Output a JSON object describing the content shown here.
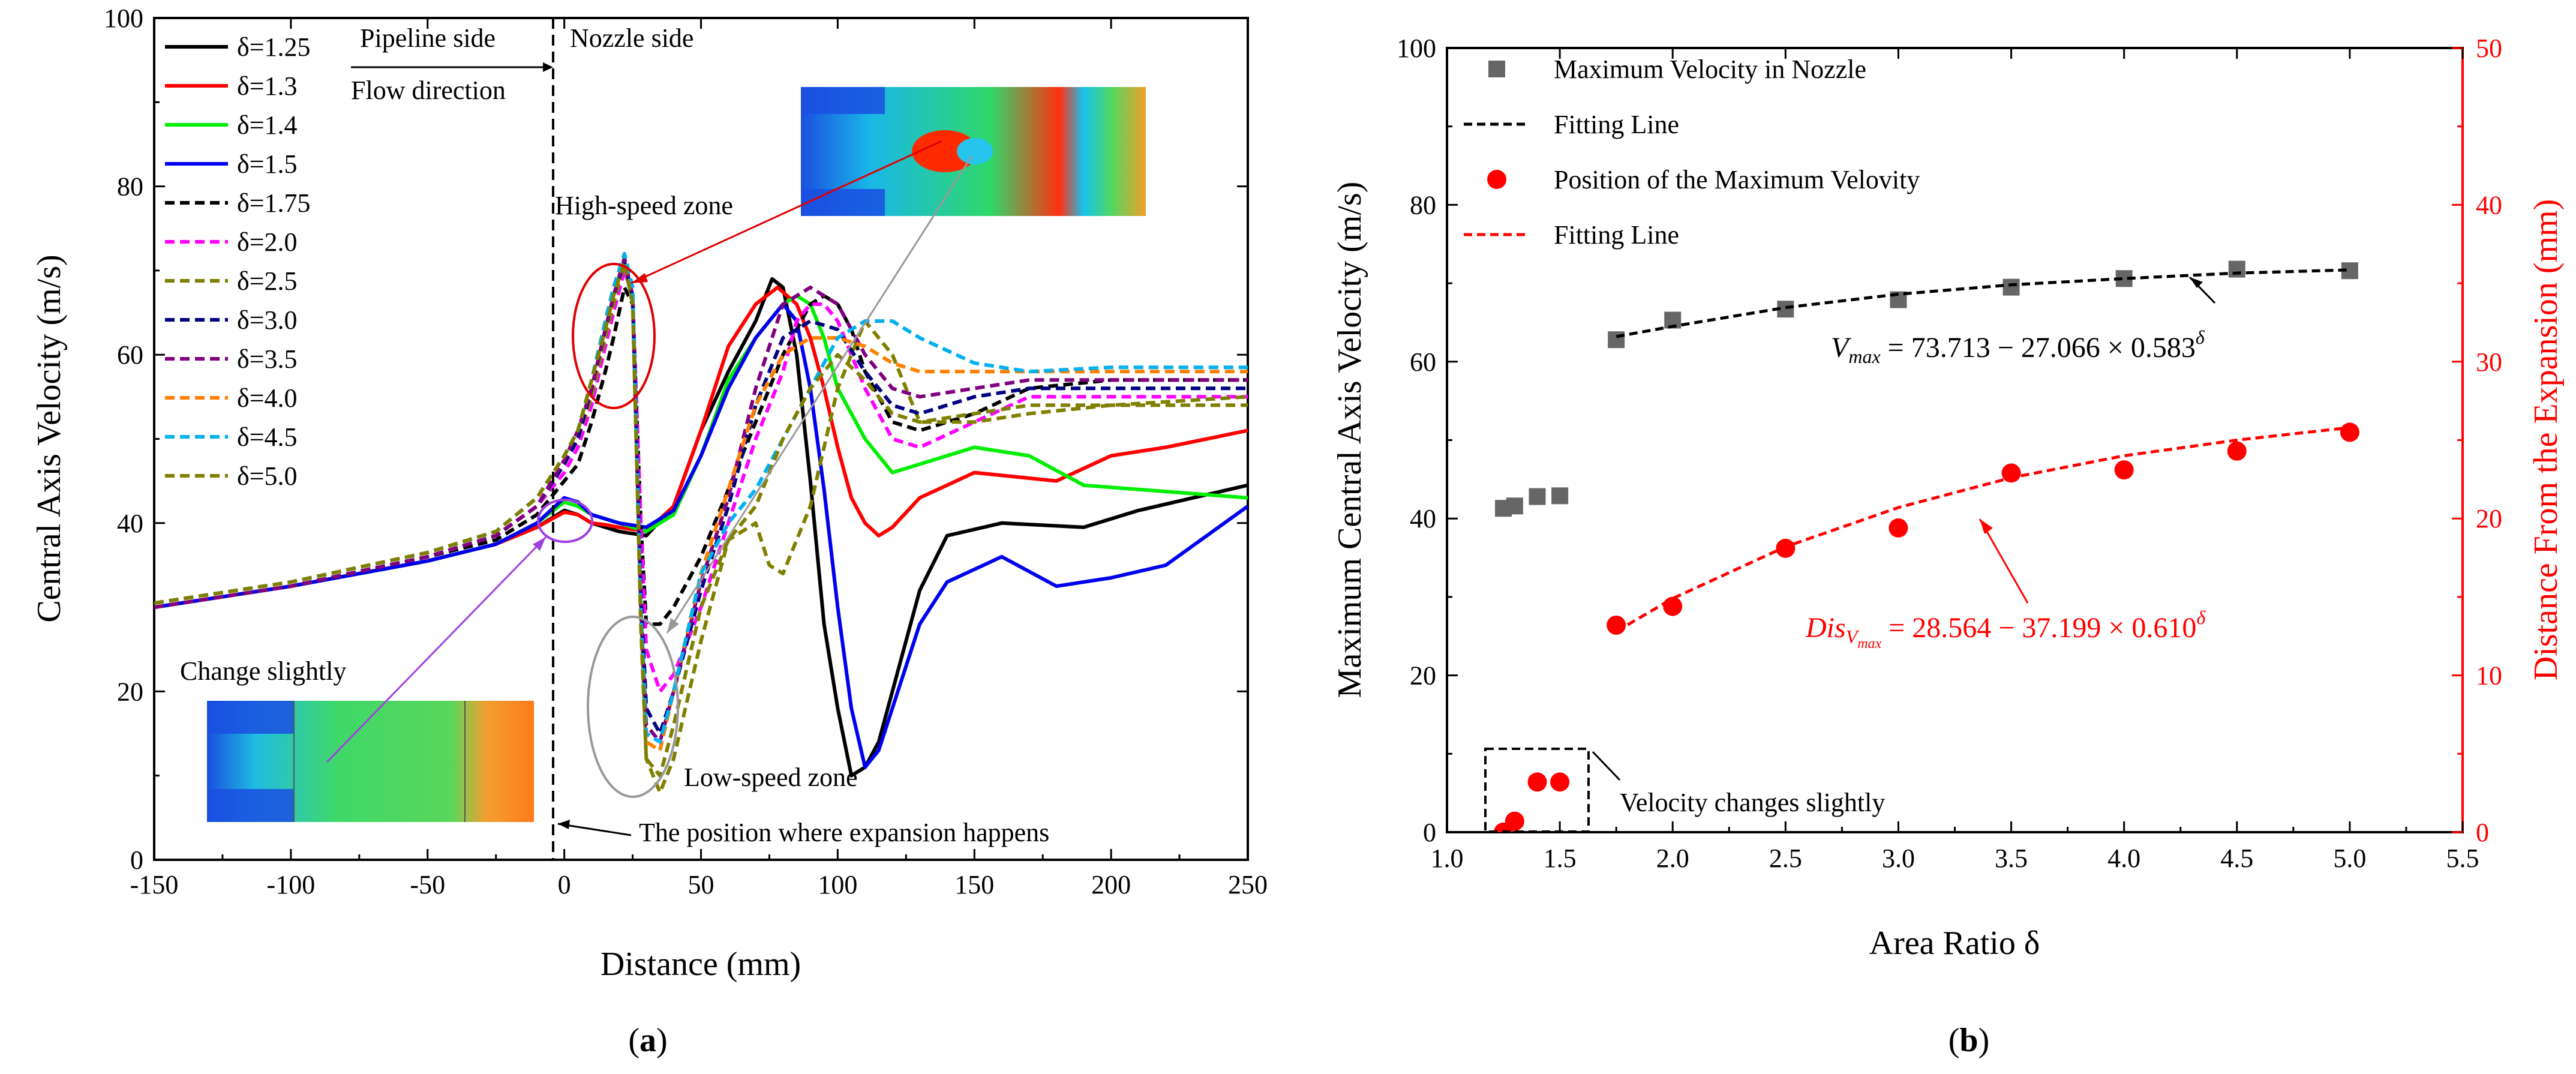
{
  "chart_data": [
    {
      "panel": "(a)",
      "type": "line",
      "xlabel": "Distance (mm)",
      "ylabel": "Central Axis Velocity (m/s)",
      "xlim": [
        -150,
        250
      ],
      "ylim": [
        0,
        100
      ],
      "xticks": [
        -150,
        -100,
        -50,
        0,
        50,
        100,
        150,
        200,
        250
      ],
      "yticks": [
        0,
        20,
        40,
        60,
        80,
        100
      ],
      "series": [
        {
          "name": "δ=1.25",
          "color": "#000000",
          "dash": "solid",
          "x": [
            -150,
            -100,
            -50,
            -25,
            -10,
            0,
            5,
            10,
            15,
            20,
            30,
            40,
            50,
            60,
            70,
            76,
            80,
            85,
            90,
            95,
            100,
            105,
            110,
            115,
            120,
            130,
            140,
            160,
            190,
            210,
            230,
            250
          ],
          "y": [
            30,
            32.5,
            35.5,
            37.5,
            39.5,
            41.5,
            41,
            40,
            39.5,
            39,
            38.5,
            42,
            51,
            58,
            64,
            69,
            68,
            60,
            45,
            28,
            18,
            10,
            11,
            14,
            20,
            32,
            38.5,
            40,
            39.5,
            41.5,
            43,
            44.5
          ]
        },
        {
          "name": "δ=1.3",
          "color": "#ff0000",
          "dash": "solid",
          "x": [
            -150,
            -100,
            -50,
            -25,
            -10,
            0,
            5,
            10,
            15,
            20,
            30,
            40,
            50,
            60,
            70,
            78,
            85,
            90,
            95,
            100,
            105,
            110,
            115,
            120,
            130,
            150,
            180,
            200,
            220,
            250
          ],
          "y": [
            30,
            32.5,
            35.5,
            37.5,
            39.5,
            41.3,
            41,
            40,
            39.8,
            39.5,
            39,
            42,
            51,
            61,
            66,
            68,
            66,
            62,
            56,
            49,
            43,
            40,
            38.5,
            39.5,
            43,
            46,
            45,
            48,
            49,
            51
          ]
        },
        {
          "name": "δ=1.4",
          "color": "#00ee00",
          "dash": "solid",
          "x": [
            -150,
            -100,
            -50,
            -25,
            -10,
            0,
            5,
            10,
            15,
            20,
            30,
            40,
            50,
            60,
            70,
            80,
            85,
            90,
            95,
            100,
            110,
            120,
            130,
            150,
            170,
            190,
            210,
            250
          ],
          "y": [
            30,
            32.5,
            35.5,
            37.5,
            40,
            42.5,
            42,
            41,
            40.5,
            40,
            39,
            41,
            48,
            57,
            62,
            66,
            67,
            66,
            62,
            56,
            50,
            46,
            47,
            49,
            48,
            44.5,
            44,
            43
          ]
        },
        {
          "name": "δ=1.5",
          "color": "#0000ee",
          "dash": "solid",
          "x": [
            -150,
            -100,
            -50,
            -25,
            -10,
            0,
            5,
            10,
            15,
            20,
            30,
            40,
            50,
            60,
            70,
            80,
            85,
            90,
            95,
            100,
            105,
            110,
            115,
            120,
            130,
            140,
            160,
            180,
            200,
            220,
            250
          ],
          "y": [
            30,
            32.5,
            35.5,
            37.5,
            40,
            43,
            42.5,
            41,
            40.5,
            40,
            39.5,
            41.5,
            48,
            56,
            62,
            66,
            64,
            56,
            44,
            30,
            18,
            11,
            13,
            18,
            28,
            33,
            36,
            32.5,
            33.5,
            35,
            42
          ]
        },
        {
          "name": "δ=1.75",
          "color": "#000000",
          "dash": "dash",
          "x": [
            -150,
            -100,
            -50,
            -25,
            -10,
            0,
            5,
            10,
            15,
            18,
            22,
            25,
            28,
            30,
            35,
            40,
            50,
            60,
            70,
            80,
            90,
            95,
            100,
            105,
            110,
            120,
            130,
            150,
            170,
            200,
            250
          ],
          "y": [
            30,
            32.5,
            36,
            38,
            41,
            45,
            47,
            52,
            58,
            62,
            68,
            66,
            40,
            28,
            28,
            30,
            36,
            44,
            52,
            60,
            66,
            67,
            66,
            63,
            58,
            52,
            51,
            53,
            56,
            57,
            57
          ]
        },
        {
          "name": "δ=2.0",
          "color": "#ff00ff",
          "dash": "dash",
          "x": [
            -150,
            -100,
            -50,
            -25,
            -10,
            0,
            5,
            10,
            15,
            18,
            22,
            25,
            28,
            30,
            35,
            40,
            50,
            60,
            70,
            80,
            85,
            90,
            95,
            100,
            110,
            120,
            130,
            150,
            170,
            200,
            250
          ],
          "y": [
            30,
            32.5,
            36,
            38.5,
            42,
            46,
            49,
            54,
            61,
            65,
            70,
            67,
            40,
            25,
            20,
            22,
            30,
            40,
            50,
            58,
            64,
            66,
            66,
            64,
            56,
            50,
            49,
            52,
            55,
            55,
            55
          ]
        },
        {
          "name": "δ=2.5",
          "color": "#808000",
          "dash": "dash",
          "x": [
            -150,
            -100,
            -50,
            -25,
            -10,
            0,
            5,
            10,
            15,
            18,
            22,
            25,
            28,
            30,
            35,
            40,
            50,
            60,
            70,
            75,
            80,
            90,
            100,
            110,
            120,
            130,
            150,
            170,
            200,
            250
          ],
          "y": [
            30,
            32.5,
            36,
            38.5,
            42,
            47,
            50,
            55,
            62,
            66,
            71,
            66,
            30,
            12,
            8,
            12,
            26,
            38,
            40,
            35,
            34,
            42,
            56,
            64,
            60,
            52,
            52,
            53,
            54,
            55
          ]
        },
        {
          "name": "δ=3.0",
          "color": "#000080",
          "dash": "dash",
          "x": [
            -150,
            -100,
            -50,
            -25,
            -10,
            0,
            5,
            10,
            15,
            18,
            22,
            25,
            28,
            30,
            35,
            40,
            50,
            60,
            70,
            80,
            90,
            100,
            110,
            120,
            130,
            150,
            170,
            200,
            250
          ],
          "y": [
            30,
            32.5,
            36,
            38.5,
            42,
            47,
            50,
            56,
            63,
            67,
            71,
            67,
            32,
            18,
            15,
            20,
            32,
            42,
            54,
            62,
            64,
            63,
            58,
            54,
            53,
            55,
            56,
            56,
            56
          ]
        },
        {
          "name": "δ=3.5",
          "color": "#800080",
          "dash": "dash",
          "x": [
            -150,
            -100,
            -50,
            -25,
            -10,
            0,
            5,
            10,
            15,
            18,
            22,
            25,
            28,
            30,
            35,
            40,
            50,
            60,
            70,
            80,
            90,
            100,
            110,
            120,
            130,
            150,
            170,
            200,
            250
          ],
          "y": [
            30,
            32.5,
            36,
            38.5,
            42,
            47.5,
            51,
            56,
            63,
            67,
            71.5,
            67,
            30,
            16,
            14,
            20,
            33,
            43,
            56,
            66,
            68,
            66,
            60,
            56,
            55,
            56,
            57,
            57,
            57
          ]
        },
        {
          "name": "δ=4.0",
          "color": "#ff8000",
          "dash": "dash",
          "x": [
            -150,
            -100,
            -50,
            -25,
            -10,
            0,
            5,
            10,
            15,
            18,
            22,
            25,
            28,
            30,
            35,
            40,
            50,
            60,
            70,
            80,
            90,
            100,
            110,
            120,
            130,
            150,
            170,
            200,
            250
          ],
          "y": [
            30.5,
            33,
            36.5,
            39,
            43,
            48,
            51,
            57,
            64,
            68,
            72,
            67,
            28,
            14,
            13,
            20,
            34,
            44,
            54,
            60,
            62,
            62,
            61,
            59,
            58,
            58,
            58,
            58,
            58
          ]
        },
        {
          "name": "δ=4.5",
          "color": "#00b0f0",
          "dash": "dash",
          "x": [
            -150,
            -100,
            -50,
            -25,
            -10,
            0,
            5,
            10,
            15,
            18,
            22,
            25,
            28,
            30,
            35,
            40,
            50,
            60,
            70,
            80,
            90,
            100,
            110,
            120,
            130,
            150,
            170,
            200,
            250
          ],
          "y": [
            30.5,
            33,
            36.5,
            39,
            43,
            48,
            51,
            57,
            64,
            68,
            72,
            68,
            30,
            15,
            14,
            20,
            34,
            40,
            44,
            50,
            56,
            62,
            64,
            64,
            62,
            59,
            58,
            58.5,
            58.5
          ]
        },
        {
          "name": "δ=5.0",
          "color": "#808000",
          "dash": "dash",
          "x": [
            -150,
            -100,
            -50,
            -25,
            -10,
            0,
            5,
            10,
            15,
            18,
            22,
            25,
            28,
            30,
            35,
            40,
            50,
            60,
            70,
            80,
            90,
            100,
            110,
            120,
            130,
            150,
            170,
            200,
            250
          ],
          "y": [
            30.5,
            33,
            36.5,
            39,
            43,
            48,
            51,
            57,
            63,
            67,
            71,
            66,
            28,
            12,
            10,
            16,
            30,
            38,
            42,
            50,
            56,
            60,
            57,
            53,
            52,
            53,
            54,
            54,
            54
          ]
        }
      ],
      "annotations": {
        "pipeline_side": "Pipeline side",
        "nozzle_side": "Nozzle side",
        "flow_direction": "Flow direction",
        "high_speed_zone": "High-speed zone",
        "low_speed_zone": "Low-speed zone",
        "change_slightly": "Change slightly",
        "expansion_position": "The position where expansion happens"
      },
      "caption": "(a)"
    },
    {
      "panel": "(b)",
      "type": "scatter",
      "xlabel": "Area Ratio δ",
      "ylabel_left": "Maximum Central Axis Velocity (m/s)",
      "ylabel_right": "Distance From the Expansion (mm)",
      "xlim": [
        1.0,
        5.5
      ],
      "ylim_left": [
        0,
        100
      ],
      "ylim_right": [
        0,
        50
      ],
      "xticks": [
        "1.0",
        "1.5",
        "2.0",
        "2.5",
        "3.0",
        "3.5",
        "4.0",
        "4.5",
        "5.0",
        "5.5"
      ],
      "yticks_left": [
        0,
        20,
        40,
        60,
        80,
        100
      ],
      "yticks_right": [
        0,
        10,
        20,
        30,
        40,
        50
      ],
      "series": [
        {
          "name": "Maximum Velocity in Nozzle",
          "axis": "left",
          "marker": "square",
          "color": "#666666",
          "x": [
            1.25,
            1.3,
            1.4,
            1.5,
            1.75,
            2.0,
            2.5,
            3.0,
            3.5,
            4.0,
            4.5,
            5.0
          ],
          "y": [
            41.3,
            41.6,
            42.8,
            42.9,
            62.8,
            65.3,
            66.7,
            67.9,
            69.5,
            70.6,
            71.8,
            71.6
          ]
        },
        {
          "name": "Fitting Line",
          "axis": "left",
          "style": "dashed",
          "color": "#000000",
          "x": [
            1.75,
            2.0,
            2.5,
            3.0,
            3.5,
            4.0,
            4.5,
            5.0
          ],
          "y": [
            63.2,
            64.5,
            66.9,
            68.6,
            69.8,
            70.6,
            71.3,
            71.7
          ]
        },
        {
          "name": "Position of the Maximum Velovity",
          "axis": "right",
          "marker": "circle",
          "color": "#ff0000",
          "x": [
            1.25,
            1.3,
            1.4,
            1.5,
            1.75,
            2.0,
            2.5,
            3.0,
            3.5,
            4.0,
            4.5,
            5.0
          ],
          "y": [
            0,
            0.7,
            3.2,
            3.2,
            13.2,
            14.4,
            18.1,
            19.4,
            22.9,
            23.1,
            24.3,
            25.5
          ]
        },
        {
          "name": "Fitting Line",
          "axis": "right",
          "style": "dashed",
          "color": "#ff0000",
          "x": [
            1.75,
            2.0,
            2.5,
            3.0,
            3.5,
            4.0,
            4.5,
            5.0
          ],
          "y": [
            12.8,
            14.9,
            18.2,
            20.7,
            22.6,
            24.0,
            25.0,
            25.8
          ]
        }
      ],
      "annotations": {
        "vmax_equation": "= 73.713 − 27.066 × 0.583",
        "vmax_label": "V",
        "vmax_sub": "max",
        "dis_equation": "= 28.564 − 37.199 × 0.610",
        "dis_label": "Dis",
        "dis_sub": "V",
        "dis_subsub": "max",
        "exponent": "δ",
        "velocity_changes": "Velocity changes slightly"
      },
      "caption": "(b)"
    }
  ]
}
